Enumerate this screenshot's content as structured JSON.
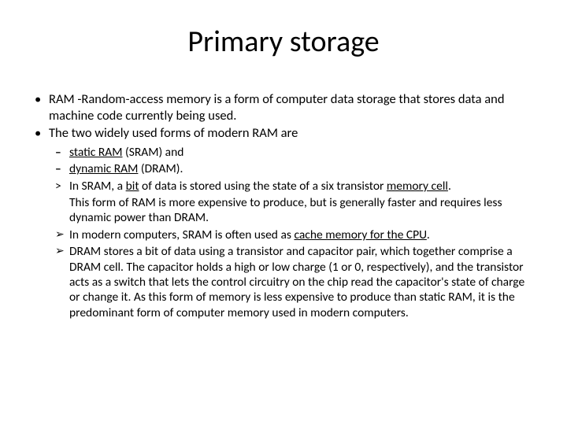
{
  "title": "Primary storage",
  "bullets": {
    "b1_pre": "RAM -",
    "b1_link": "Random-access memory",
    "b1_post": " is a form of computer data storage that stores ",
    "b1_link2": "data",
    "b1_post2": " and machine code currently being used.",
    "b2": "The two widely used forms of modern RAM are",
    "s1_link": "static RAM",
    "s1_post": " (SRAM) and",
    "s2_link": "dynamic RAM",
    "s2_post": " (DRAM).",
    "s3_pre": "In SRAM, a ",
    "s3_link1": "bit",
    "s3_mid1": " of data is stored using the state of a six transistor ",
    "s3_link2": "memory cell",
    "s3_post": ".",
    "s4": "This form of RAM is more expensive to produce, but is generally faster and requires less dynamic power than DRAM.",
    "s5_pre": "In modern computers, SRAM is often used as ",
    "s5_link": "cache memory for the CPU",
    "s5_post": ".",
    "s6": "DRAM stores a bit of data using a transistor and capacitor pair, which together comprise a DRAM cell. The capacitor holds a high or low charge (1 or 0, respectively), and the transistor acts as a switch that lets the control circuitry on the chip read the capacitor's state of charge or change it. As this form of memory is less expensive to produce than static RAM, it is the predominant form of computer memory used in modern computers."
  },
  "colors": {
    "background": "#ffffff",
    "text": "#000000"
  },
  "fonts": {
    "title_size_pt": 38,
    "body_size_pt": 16.5,
    "sub_size_pt": 15.5,
    "family": "Calibri"
  }
}
